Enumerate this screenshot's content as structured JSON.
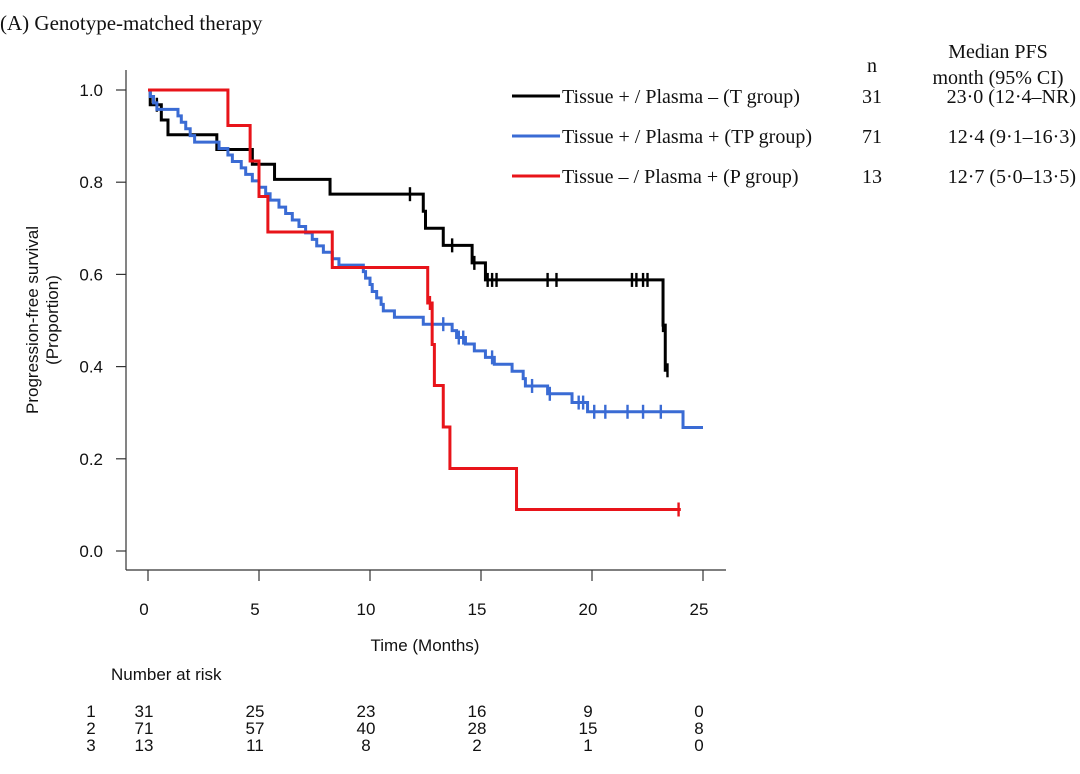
{
  "chart_data": {
    "type": "line",
    "subtype": "kaplan-meier",
    "title": "(A) Genotype-matched therapy",
    "xlabel": "Time (Months)",
    "ylabel_line1": "Progression-free survival",
    "ylabel_line2": "(Proportion)",
    "xlim": [
      0,
      25
    ],
    "ylim": [
      0,
      1
    ],
    "x_ticks": [
      0,
      5,
      10,
      15,
      20,
      25
    ],
    "x_tick_labels": [
      "0",
      "5",
      "10",
      "15",
      "20",
      "25"
    ],
    "y_ticks": [
      0,
      0.2,
      0.4,
      0.6,
      0.8,
      1.0
    ],
    "y_tick_labels": [
      "0.0",
      "0.2",
      "0.4",
      "0.6",
      "0.8",
      "1.0"
    ],
    "grid": false,
    "legend_position": "top-right",
    "table_headers": {
      "n": "n",
      "median_line1": "Median PFS",
      "median_line2": "month (95% CI)"
    },
    "series": [
      {
        "name": "Tissue + / Plasma – (T group)",
        "color": "#000000",
        "n": "31",
        "median": "23·0 (12·4–NR)",
        "steps": [
          [
            0,
            1.0
          ],
          [
            0.1,
            0.968
          ],
          [
            0.6,
            0.935
          ],
          [
            0.9,
            0.903
          ],
          [
            3.1,
            0.871
          ],
          [
            4.7,
            0.839
          ],
          [
            5.7,
            0.806
          ],
          [
            8.2,
            0.774
          ],
          [
            12.4,
            0.737
          ],
          [
            12.5,
            0.7
          ],
          [
            13.3,
            0.663
          ],
          [
            14.6,
            0.625
          ],
          [
            15.2,
            0.588
          ],
          [
            23.2,
            0.49
          ],
          [
            23.3,
            0.392
          ]
        ],
        "end_x": 23.4,
        "censors": [
          [
            0.4,
            0.968
          ],
          [
            11.8,
            0.774
          ],
          [
            13.7,
            0.663
          ],
          [
            14.7,
            0.625
          ],
          [
            15.3,
            0.588
          ],
          [
            15.5,
            0.588
          ],
          [
            15.7,
            0.588
          ],
          [
            18.0,
            0.588
          ],
          [
            18.4,
            0.588
          ],
          [
            21.8,
            0.588
          ],
          [
            22.0,
            0.588
          ],
          [
            22.3,
            0.588
          ],
          [
            22.5,
            0.588
          ],
          [
            23.2,
            0.49
          ],
          [
            23.4,
            0.392
          ]
        ]
      },
      {
        "name": "Tissue + / Plasma + (TP group)",
        "color": "#3A6BD4",
        "n": "71",
        "median": "12·4 (9·1–16·3)",
        "steps": [
          [
            0,
            1.0
          ],
          [
            0.1,
            0.986
          ],
          [
            0.25,
            0.972
          ],
          [
            0.4,
            0.958
          ],
          [
            1.35,
            0.944
          ],
          [
            1.5,
            0.93
          ],
          [
            1.7,
            0.916
          ],
          [
            1.9,
            0.901
          ],
          [
            2.1,
            0.887
          ],
          [
            3.2,
            0.873
          ],
          [
            3.6,
            0.859
          ],
          [
            3.8,
            0.845
          ],
          [
            4.2,
            0.831
          ],
          [
            4.4,
            0.817
          ],
          [
            4.7,
            0.803
          ],
          [
            5.0,
            0.789
          ],
          [
            5.3,
            0.775
          ],
          [
            5.5,
            0.761
          ],
          [
            5.9,
            0.746
          ],
          [
            6.2,
            0.732
          ],
          [
            6.5,
            0.718
          ],
          [
            6.8,
            0.704
          ],
          [
            7.1,
            0.69
          ],
          [
            7.4,
            0.676
          ],
          [
            7.6,
            0.662
          ],
          [
            7.9,
            0.648
          ],
          [
            8.3,
            0.634
          ],
          [
            8.6,
            0.62
          ],
          [
            9.7,
            0.606
          ],
          [
            9.8,
            0.592
          ],
          [
            10.0,
            0.578
          ],
          [
            10.1,
            0.563
          ],
          [
            10.3,
            0.549
          ],
          [
            10.5,
            0.535
          ],
          [
            10.6,
            0.521
          ],
          [
            11.1,
            0.507
          ],
          [
            12.4,
            0.492
          ],
          [
            13.7,
            0.478
          ],
          [
            13.9,
            0.463
          ],
          [
            14.3,
            0.449
          ],
          [
            14.7,
            0.434
          ],
          [
            15.2,
            0.42
          ],
          [
            15.6,
            0.405
          ],
          [
            16.4,
            0.39
          ],
          [
            16.9,
            0.374
          ],
          [
            17.0,
            0.358
          ],
          [
            18.0,
            0.341
          ],
          [
            19.1,
            0.322
          ],
          [
            19.8,
            0.302
          ],
          [
            24.1,
            0.268
          ]
        ],
        "end_x": 25.0,
        "censors": [
          [
            13.3,
            0.492
          ],
          [
            14.0,
            0.463
          ],
          [
            14.2,
            0.463
          ],
          [
            15.5,
            0.42
          ],
          [
            17.3,
            0.358
          ],
          [
            18.1,
            0.341
          ],
          [
            19.4,
            0.322
          ],
          [
            19.6,
            0.322
          ],
          [
            20.1,
            0.302
          ],
          [
            20.6,
            0.302
          ],
          [
            21.6,
            0.302
          ],
          [
            22.3,
            0.302
          ],
          [
            23.1,
            0.302
          ]
        ]
      },
      {
        "name": "Tissue – / Plasma + (P group)",
        "color": "#E8141A",
        "n": "13",
        "median": "12·7 (5·0–13·5)",
        "steps": [
          [
            0,
            1.0
          ],
          [
            3.6,
            0.923
          ],
          [
            4.6,
            0.846
          ],
          [
            5.0,
            0.769
          ],
          [
            5.4,
            0.692
          ],
          [
            8.3,
            0.615
          ],
          [
            12.6,
            0.538
          ],
          [
            12.8,
            0.448
          ],
          [
            12.9,
            0.359
          ],
          [
            13.3,
            0.269
          ],
          [
            13.6,
            0.179
          ],
          [
            16.6,
            0.09
          ]
        ],
        "end_x": 24.0,
        "censors": [
          [
            12.7,
            0.538
          ],
          [
            23.9,
            0.09
          ]
        ]
      }
    ],
    "risk_table": {
      "title": "Number at risk",
      "times": [
        0,
        5,
        10,
        15,
        20,
        25
      ],
      "rows": [
        {
          "label": "1",
          "values": [
            "31",
            "25",
            "23",
            "16",
            "9",
            "0"
          ]
        },
        {
          "label": "2",
          "values": [
            "71",
            "57",
            "40",
            "28",
            "15",
            "8"
          ]
        },
        {
          "label": "3",
          "values": [
            "13",
            "11",
            "8",
            "2",
            "1",
            "0"
          ]
        }
      ]
    }
  }
}
